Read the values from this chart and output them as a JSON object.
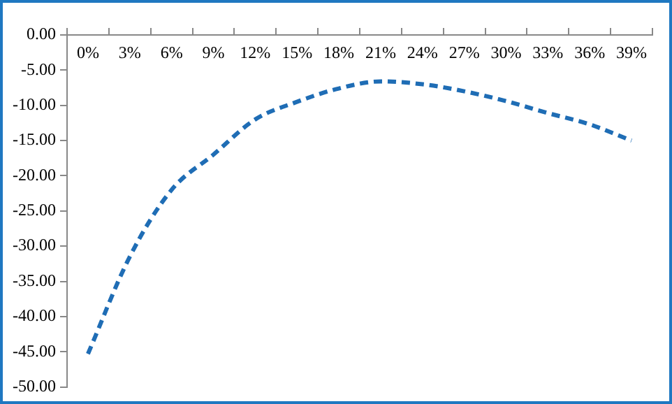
{
  "chart_data": {
    "type": "line",
    "categories": [
      "0%",
      "3%",
      "6%",
      "9%",
      "12%",
      "15%",
      "18%",
      "21%",
      "24%",
      "27%",
      "30%",
      "33%",
      "36%",
      "39%"
    ],
    "values": [
      -45.3,
      -31.5,
      -22,
      -17,
      -12,
      -9.5,
      -7.6,
      -6.6,
      -7,
      -8,
      -9.4,
      -11.1,
      -12.7,
      -15
    ],
    "color": "#1f6db5",
    "line_style": "dashed",
    "marker": "none",
    "grid": false,
    "legend": false,
    "ylim": [
      -50,
      0
    ],
    "yticks": [
      {
        "value": 0,
        "label": "0.00"
      },
      {
        "value": -5,
        "label": "-5.00"
      },
      {
        "value": -10,
        "label": "-10.00"
      },
      {
        "value": -15,
        "label": "-15.00"
      },
      {
        "value": -20,
        "label": "-20.00"
      },
      {
        "value": -25,
        "label": "-25.00"
      },
      {
        "value": -30,
        "label": "-30.00"
      },
      {
        "value": -35,
        "label": "-35.00"
      },
      {
        "value": -40,
        "label": "-40.00"
      },
      {
        "value": -45,
        "label": "-45.00"
      },
      {
        "value": -50,
        "label": "-50.00"
      }
    ]
  }
}
